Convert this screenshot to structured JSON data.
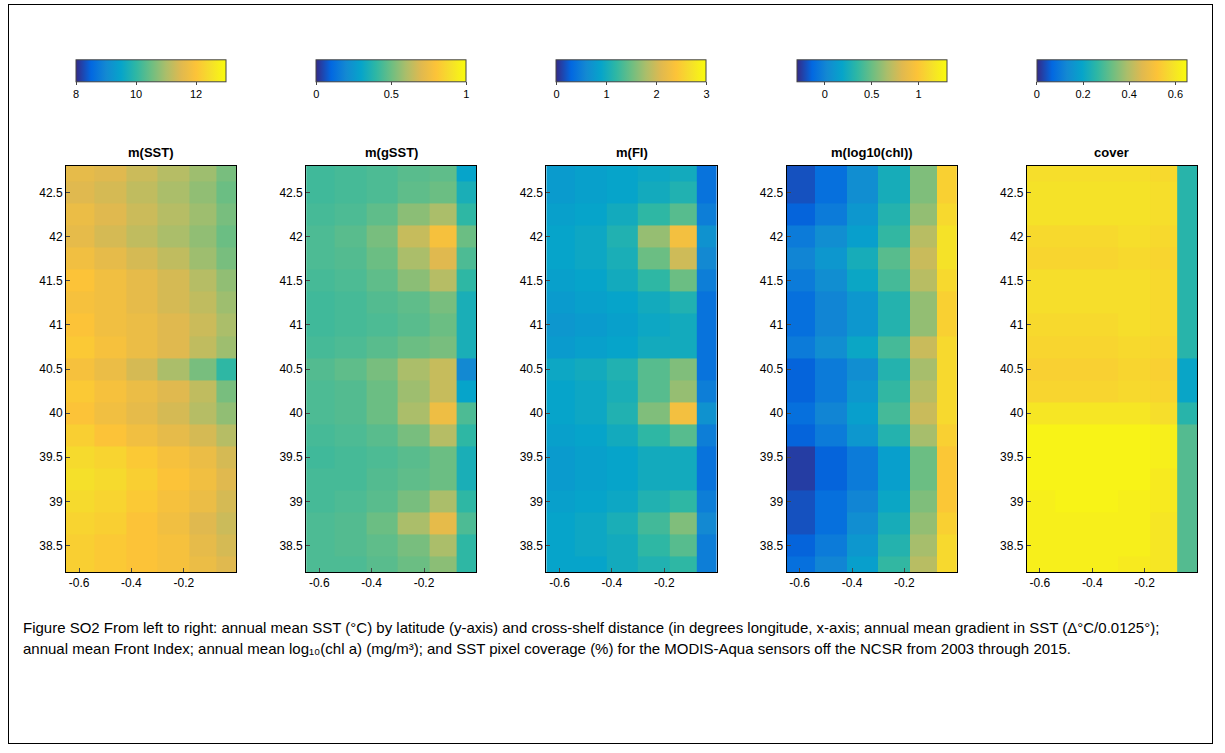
{
  "chart_data": [
    {
      "type": "heatmap",
      "title": "m(SST)",
      "x": [
        -0.6,
        -0.48,
        -0.36,
        -0.24,
        -0.12,
        -0.03
      ],
      "y": [
        38.25,
        38.5,
        38.75,
        39,
        39.25,
        39.5,
        39.75,
        40,
        40.25,
        40.5,
        40.75,
        41,
        41.25,
        41.5,
        41.75,
        42,
        42.25,
        42.5,
        42.75
      ],
      "z": [
        [
          12.2,
          12.1,
          12.0,
          11.9,
          11.7,
          11.5
        ],
        [
          12.2,
          12.1,
          12.0,
          11.9,
          11.6,
          11.4
        ],
        [
          12.3,
          12.2,
          12.0,
          11.8,
          11.5,
          11.3
        ],
        [
          12.4,
          12.3,
          12.1,
          11.9,
          11.7,
          11.4
        ],
        [
          12.5,
          12.4,
          12.2,
          12.0,
          11.8,
          11.5
        ],
        [
          12.4,
          12.3,
          12.1,
          11.9,
          11.7,
          11.4
        ],
        [
          12.2,
          12.0,
          11.8,
          11.6,
          11.4,
          11.1
        ],
        [
          12.0,
          11.8,
          11.6,
          11.4,
          11.1,
          10.8
        ],
        [
          12.1,
          11.9,
          11.7,
          11.5,
          11.2,
          10.6
        ],
        [
          11.9,
          11.7,
          11.4,
          11.0,
          10.6,
          10.0
        ],
        [
          12.1,
          11.9,
          11.7,
          11.5,
          11.2,
          10.9
        ],
        [
          12.0,
          11.8,
          11.7,
          11.5,
          11.3,
          11.0
        ],
        [
          11.9,
          11.8,
          11.6,
          11.4,
          11.2,
          10.9
        ],
        [
          12.0,
          11.8,
          11.6,
          11.4,
          11.1,
          10.8
        ],
        [
          11.8,
          11.6,
          11.4,
          11.2,
          10.9,
          10.6
        ],
        [
          11.6,
          11.4,
          11.2,
          11.0,
          10.8,
          10.5
        ],
        [
          11.7,
          11.5,
          11.3,
          11.1,
          10.9,
          10.6
        ],
        [
          11.5,
          11.4,
          11.2,
          11.0,
          10.8,
          10.5
        ],
        [
          11.6,
          11.5,
          11.3,
          11.1,
          10.9,
          10.6
        ]
      ],
      "xlim": [
        -0.65,
        0
      ],
      "ylim": [
        38.2,
        42.8
      ],
      "xticks": [
        -0.6,
        -0.4,
        -0.2
      ],
      "yticks": [
        38.5,
        39,
        39.5,
        40,
        40.5,
        41,
        41.5,
        42,
        42.5
      ],
      "colorbar_range": [
        8,
        13
      ],
      "colorbar_ticks": [
        8,
        10,
        12
      ]
    },
    {
      "type": "heatmap",
      "title": "m(gSST)",
      "x": [
        -0.6,
        -0.48,
        -0.36,
        -0.24,
        -0.12,
        -0.03
      ],
      "y": [
        38.25,
        38.5,
        38.75,
        39,
        39.25,
        39.5,
        39.75,
        40,
        40.25,
        40.5,
        40.75,
        41,
        41.25,
        41.5,
        41.75,
        42,
        42.25,
        42.5,
        42.75
      ],
      "z": [
        [
          0.45,
          0.45,
          0.47,
          0.5,
          0.55,
          0.4
        ],
        [
          0.45,
          0.46,
          0.48,
          0.52,
          0.6,
          0.4
        ],
        [
          0.45,
          0.46,
          0.5,
          0.6,
          0.72,
          0.45
        ],
        [
          0.44,
          0.45,
          0.47,
          0.52,
          0.6,
          0.4
        ],
        [
          0.44,
          0.44,
          0.46,
          0.48,
          0.5,
          0.35
        ],
        [
          0.43,
          0.44,
          0.45,
          0.47,
          0.5,
          0.35
        ],
        [
          0.44,
          0.45,
          0.47,
          0.52,
          0.62,
          0.4
        ],
        [
          0.45,
          0.46,
          0.5,
          0.6,
          0.75,
          0.45
        ],
        [
          0.45,
          0.46,
          0.5,
          0.58,
          0.65,
          0.3
        ],
        [
          0.46,
          0.48,
          0.52,
          0.6,
          0.65,
          0.2
        ],
        [
          0.44,
          0.45,
          0.47,
          0.5,
          0.52,
          0.35
        ],
        [
          0.43,
          0.44,
          0.45,
          0.47,
          0.5,
          0.35
        ],
        [
          0.43,
          0.44,
          0.46,
          0.48,
          0.52,
          0.35
        ],
        [
          0.44,
          0.45,
          0.48,
          0.55,
          0.62,
          0.4
        ],
        [
          0.45,
          0.46,
          0.5,
          0.6,
          0.7,
          0.45
        ],
        [
          0.45,
          0.47,
          0.52,
          0.65,
          0.78,
          0.5
        ],
        [
          0.44,
          0.45,
          0.48,
          0.55,
          0.6,
          0.4
        ],
        [
          0.43,
          0.44,
          0.45,
          0.48,
          0.5,
          0.35
        ],
        [
          0.43,
          0.44,
          0.45,
          0.47,
          0.48,
          0.3
        ]
      ],
      "xlim": [
        -0.65,
        0
      ],
      "ylim": [
        38.2,
        42.8
      ],
      "xticks": [
        -0.6,
        -0.4,
        -0.2
      ],
      "yticks": [
        38.5,
        39,
        39.5,
        40,
        40.5,
        41,
        41.5,
        42,
        42.5
      ],
      "colorbar_range": [
        0,
        1
      ],
      "colorbar_ticks": [
        0,
        0.5,
        1
      ]
    },
    {
      "type": "heatmap",
      "title": "m(FI)",
      "x": [
        -0.6,
        -0.48,
        -0.36,
        -0.24,
        -0.12,
        -0.03
      ],
      "y": [
        38.25,
        38.5,
        38.75,
        39,
        39.25,
        39.5,
        39.75,
        40,
        40.25,
        40.5,
        40.75,
        41,
        41.25,
        41.5,
        41.75,
        42,
        42.25,
        42.5,
        42.75
      ],
      "z": [
        [
          0.9,
          0.9,
          1.0,
          1.1,
          1.2,
          0.5
        ],
        [
          0.9,
          0.95,
          1.0,
          1.2,
          1.4,
          0.5
        ],
        [
          0.9,
          0.95,
          1.05,
          1.3,
          1.6,
          0.6
        ],
        [
          0.85,
          0.9,
          0.95,
          1.1,
          1.2,
          0.5
        ],
        [
          0.8,
          0.85,
          0.9,
          1.0,
          1.0,
          0.4
        ],
        [
          0.8,
          0.85,
          0.9,
          1.0,
          1.0,
          0.4
        ],
        [
          0.85,
          0.9,
          1.0,
          1.2,
          1.4,
          0.5
        ],
        [
          0.9,
          0.95,
          1.1,
          1.6,
          2.3,
          0.7
        ],
        [
          0.9,
          0.95,
          1.05,
          1.4,
          1.7,
          0.5
        ],
        [
          0.95,
          1.0,
          1.1,
          1.4,
          1.6,
          0.4
        ],
        [
          0.8,
          0.85,
          0.9,
          1.0,
          1.0,
          0.4
        ],
        [
          0.75,
          0.8,
          0.85,
          0.95,
          1.0,
          0.4
        ],
        [
          0.8,
          0.85,
          0.9,
          1.0,
          1.1,
          0.4
        ],
        [
          0.85,
          0.9,
          1.0,
          1.2,
          1.5,
          0.5
        ],
        [
          0.9,
          0.95,
          1.05,
          1.5,
          2.0,
          0.6
        ],
        [
          0.9,
          0.95,
          1.1,
          1.7,
          2.3,
          0.7
        ],
        [
          0.85,
          0.9,
          1.0,
          1.2,
          1.4,
          0.5
        ],
        [
          0.8,
          0.85,
          0.9,
          1.0,
          1.1,
          0.4
        ],
        [
          0.8,
          0.85,
          0.9,
          0.95,
          1.0,
          0.4
        ]
      ],
      "xlim": [
        -0.65,
        0
      ],
      "ylim": [
        38.2,
        42.8
      ],
      "xticks": [
        -0.6,
        -0.4,
        -0.2
      ],
      "yticks": [
        38.5,
        39,
        39.5,
        40,
        40.5,
        41,
        41.5,
        42,
        42.5
      ],
      "colorbar_range": [
        0,
        3
      ],
      "colorbar_ticks": [
        0,
        1,
        2,
        3
      ]
    },
    {
      "type": "heatmap",
      "title": "m(log10(chl))",
      "x": [
        -0.6,
        -0.48,
        -0.36,
        -0.24,
        -0.12,
        -0.03
      ],
      "y": [
        38.25,
        38.5,
        38.75,
        39,
        39.25,
        39.5,
        39.75,
        40,
        40.25,
        40.5,
        40.75,
        41,
        41.25,
        41.5,
        41.75,
        42,
        42.25,
        42.5,
        42.75
      ],
      "z": [
        [
          -0.1,
          0,
          0.15,
          0.35,
          0.7,
          1.1
        ],
        [
          -0.15,
          -0.05,
          0.1,
          0.3,
          0.65,
          1.1
        ],
        [
          -0.2,
          -0.1,
          0.05,
          0.25,
          0.6,
          1.05
        ],
        [
          -0.2,
          -0.1,
          0,
          0.2,
          0.55,
          1.0
        ],
        [
          -0.25,
          -0.15,
          -0.05,
          0.15,
          0.5,
          1.0
        ],
        [
          -0.25,
          -0.15,
          -0.05,
          0.15,
          0.5,
          1.0
        ],
        [
          -0.15,
          -0.05,
          0.1,
          0.3,
          0.65,
          1.05
        ],
        [
          -0.1,
          0,
          0.15,
          0.4,
          0.75,
          1.1
        ],
        [
          -0.15,
          -0.05,
          0.1,
          0.35,
          0.7,
          1.1
        ],
        [
          -0.15,
          -0.05,
          0.05,
          0.3,
          0.65,
          1.1
        ],
        [
          -0.05,
          0.05,
          0.2,
          0.4,
          0.75,
          1.1
        ],
        [
          -0.1,
          0,
          0.1,
          0.3,
          0.6,
          1.05
        ],
        [
          -0.1,
          0,
          0.1,
          0.3,
          0.6,
          1.05
        ],
        [
          -0.05,
          0.05,
          0.2,
          0.4,
          0.7,
          1.1
        ],
        [
          0,
          0.1,
          0.25,
          0.45,
          0.75,
          1.15
        ],
        [
          -0.05,
          0.05,
          0.15,
          0.35,
          0.7,
          1.15
        ],
        [
          -0.15,
          -0.05,
          0.1,
          0.3,
          0.6,
          1.1
        ],
        [
          -0.2,
          -0.1,
          0.05,
          0.25,
          0.55,
          1.05
        ],
        [
          -0.2,
          -0.1,
          0.05,
          0.25,
          0.55,
          1.05
        ]
      ],
      "xlim": [
        -0.65,
        0
      ],
      "ylim": [
        38.2,
        42.8
      ],
      "xticks": [
        -0.6,
        -0.4,
        -0.2
      ],
      "yticks": [
        38.5,
        39,
        39.5,
        40,
        40.5,
        41,
        41.5,
        42,
        42.5
      ],
      "colorbar_range": [
        -0.3,
        1.3
      ],
      "colorbar_ticks": [
        0,
        0.5,
        1
      ]
    },
    {
      "type": "heatmap",
      "title": "cover",
      "x": [
        -0.6,
        -0.48,
        -0.36,
        -0.24,
        -0.12,
        -0.03
      ],
      "y": [
        38.25,
        38.5,
        38.75,
        39,
        39.25,
        39.5,
        39.75,
        40,
        40.25,
        40.5,
        40.75,
        41,
        41.25,
        41.5,
        41.75,
        42,
        42.25,
        42.5,
        42.75
      ],
      "z": [
        [
          0.62,
          0.62,
          0.62,
          0.61,
          0.6,
          0.3
        ],
        [
          0.62,
          0.62,
          0.62,
          0.62,
          0.6,
          0.3
        ],
        [
          0.62,
          0.62,
          0.62,
          0.62,
          0.6,
          0.3
        ],
        [
          0.62,
          0.63,
          0.63,
          0.62,
          0.61,
          0.3
        ],
        [
          0.63,
          0.63,
          0.63,
          0.63,
          0.61,
          0.3
        ],
        [
          0.63,
          0.63,
          0.63,
          0.63,
          0.62,
          0.3
        ],
        [
          0.63,
          0.63,
          0.63,
          0.63,
          0.62,
          0.3
        ],
        [
          0.6,
          0.6,
          0.6,
          0.6,
          0.58,
          0.25
        ],
        [
          0.56,
          0.56,
          0.56,
          0.57,
          0.56,
          0.2
        ],
        [
          0.55,
          0.55,
          0.55,
          0.56,
          0.55,
          0.2
        ],
        [
          0.56,
          0.56,
          0.56,
          0.57,
          0.56,
          0.25
        ],
        [
          0.57,
          0.57,
          0.57,
          0.58,
          0.57,
          0.25
        ],
        [
          0.58,
          0.58,
          0.58,
          0.58,
          0.57,
          0.25
        ],
        [
          0.58,
          0.58,
          0.58,
          0.58,
          0.57,
          0.25
        ],
        [
          0.56,
          0.56,
          0.56,
          0.57,
          0.56,
          0.25
        ],
        [
          0.57,
          0.57,
          0.57,
          0.58,
          0.57,
          0.25
        ],
        [
          0.59,
          0.59,
          0.59,
          0.59,
          0.58,
          0.25
        ],
        [
          0.59,
          0.59,
          0.59,
          0.59,
          0.58,
          0.25
        ],
        [
          0.58,
          0.58,
          0.58,
          0.58,
          0.57,
          0.25
        ]
      ],
      "xlim": [
        -0.65,
        0
      ],
      "ylim": [
        38.2,
        42.8
      ],
      "xticks": [
        -0.6,
        -0.4,
        -0.2
      ],
      "yticks": [
        38.5,
        39,
        39.5,
        40,
        40.5,
        41,
        41.5,
        42,
        42.5
      ],
      "colorbar_range": [
        0,
        0.65
      ],
      "colorbar_ticks": [
        0,
        0.2,
        0.4,
        0.6
      ]
    }
  ],
  "caption": "Figure SO2 From left to right: annual mean SST (°C) by latitude (y-axis) and cross-shelf distance (in degrees longitude, x-axis; annual mean gradient in SST (Δ°C/0.0125°); annual mean Front Index; annual mean log₁₀(chl a) (mg/m³); and SST pixel coverage (%) for the MODIS-Aqua sensors off the NCSR from 2003 through 2015."
}
